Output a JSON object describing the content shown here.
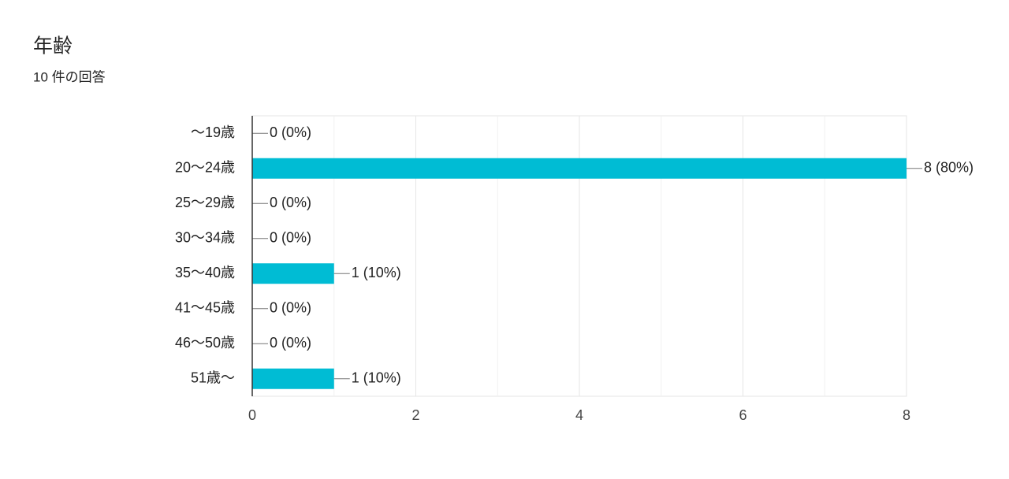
{
  "chart_data": {
    "type": "bar",
    "orientation": "horizontal",
    "title": "年齢",
    "subtitle": "10 件の回答",
    "categories": [
      "〜19歳",
      "20〜24歳",
      "25〜29歳",
      "30〜34歳",
      "35〜40歳",
      "41〜45歳",
      "46〜50歳",
      "51歳〜"
    ],
    "values": [
      0,
      8,
      0,
      0,
      1,
      0,
      0,
      1
    ],
    "value_labels": [
      "0 (0%)",
      "8 (80%)",
      "0 (0%)",
      "0 (0%)",
      "1 (10%)",
      "0 (0%)",
      "0 (0%)",
      "1 (10%)"
    ],
    "color": "#00bcd4",
    "xlim": [
      0,
      8
    ],
    "xticks": [
      0,
      2,
      4,
      6,
      8
    ],
    "grid": true,
    "minor_grid": true
  }
}
